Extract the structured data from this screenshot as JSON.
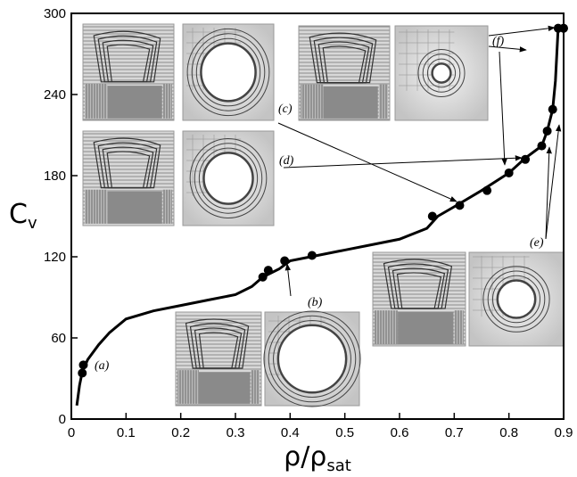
{
  "chart_data": {
    "type": "line",
    "x_label": {
      "main": "ρ/ρ",
      "sub": "sat"
    },
    "y_label": {
      "main": "C",
      "sub": "v"
    },
    "xlim": [
      0,
      0.9
    ],
    "xticks": [
      0,
      0.1,
      0.2,
      0.3,
      0.4,
      0.5,
      0.6,
      0.7,
      0.8,
      0.9
    ],
    "ylim": [
      0,
      300
    ],
    "yticks": [
      0,
      60,
      120,
      180,
      240,
      300
    ],
    "series": [
      {
        "color": "#000000",
        "marker": false,
        "x": [
          0.01,
          0.015,
          0.02,
          0.03,
          0.05,
          0.07,
          0.1,
          0.15,
          0.2,
          0.25,
          0.3,
          0.33,
          0.35,
          0.38,
          0.4,
          0.45,
          0.5,
          0.55,
          0.6,
          0.65,
          0.67,
          0.7,
          0.75,
          0.8,
          0.83,
          0.86,
          0.87,
          0.88,
          0.885,
          0.89,
          0.9
        ],
        "values": [
          10,
          25,
          35,
          44,
          55,
          64,
          74,
          80,
          84,
          88,
          92,
          98,
          105,
          111,
          117,
          121,
          125,
          129,
          133,
          141,
          150,
          157,
          169,
          182,
          193,
          202,
          213,
          229,
          250,
          289,
          289
        ]
      },
      {
        "color": "#000000",
        "marker": true,
        "x": [
          0.02,
          0.022,
          0.35,
          0.36,
          0.39,
          0.44,
          0.66,
          0.71,
          0.76,
          0.8,
          0.83,
          0.86,
          0.87,
          0.88,
          0.89,
          0.9
        ],
        "values": [
          34,
          40,
          105,
          110,
          117,
          121,
          150,
          158,
          169,
          182,
          192,
          202,
          213,
          229,
          289,
          289
        ]
      }
    ],
    "annotations": [
      "(a)",
      "(b)",
      "(c)",
      "(d)",
      "(e)",
      "(f)"
    ]
  }
}
